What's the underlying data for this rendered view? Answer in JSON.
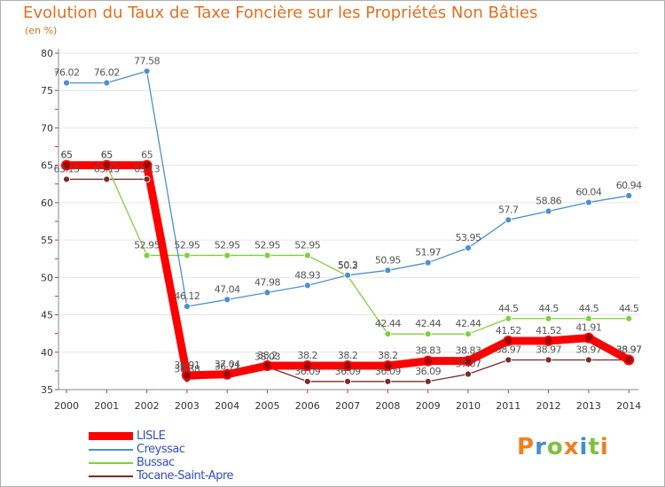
{
  "chart_data": {
    "type": "line",
    "title": "Evolution du Taux de Taxe Foncière sur les Propriétés Non Bâties",
    "ylabel": "(en %)",
    "xlabel": "",
    "ylim": [
      35,
      80
    ],
    "yticks": [
      35,
      40,
      45,
      50,
      55,
      60,
      65,
      70,
      75,
      80
    ],
    "categories": [
      "2000",
      "2001",
      "2002",
      "2003",
      "2004",
      "2005",
      "2006",
      "2007",
      "2008",
      "2009",
      "2010",
      "2011",
      "2012",
      "2013",
      "2014"
    ],
    "series": [
      {
        "name": "LISLE",
        "color": "#ff0000",
        "values": [
          65,
          65,
          65,
          36.91,
          37.04,
          38.2,
          38.2,
          38.2,
          38.2,
          38.83,
          38.83,
          41.52,
          41.52,
          41.91,
          38.97
        ],
        "labels": [
          "65",
          "65",
          "65",
          "36.91",
          "37.04",
          "38.2",
          "38.2",
          "38.2",
          "38.2",
          "38.83",
          "38.83",
          "41.52",
          "41.52",
          "41.91",
          "38.97"
        ]
      },
      {
        "name": "Creyssac",
        "color": "#4c90d0",
        "values": [
          76.02,
          76.02,
          77.58,
          46.12,
          47.04,
          47.98,
          48.93,
          50.3,
          50.95,
          51.97,
          53.95,
          57.7,
          58.86,
          60.04,
          60.94
        ],
        "labels": [
          "76.02",
          "76.02",
          "77.58",
          "46.12",
          "47.04",
          "47.98",
          "48.93",
          "50.3",
          "50.95",
          "51.97",
          "53.95",
          "57.7",
          "58.86",
          "60.04",
          "60.94"
        ]
      },
      {
        "name": "Bussac",
        "color": "#80d040",
        "values": [
          65,
          65,
          52.95,
          52.95,
          52.95,
          52.95,
          52.95,
          50.2,
          42.44,
          42.44,
          42.44,
          44.5,
          44.5,
          44.5,
          44.5
        ],
        "labels": [
          "65",
          "65",
          "52.95",
          "52.95",
          "52.95",
          "52.95",
          "52.95",
          "50.2",
          "42.44",
          "42.44",
          "42.44",
          "44.5",
          "44.5",
          "44.5",
          "44.5"
        ]
      },
      {
        "name": "Tocane-Saint-Apre",
        "color": "#7a2a2a",
        "values": [
          63.13,
          63.13,
          63.13,
          36.38,
          36.71,
          38.03,
          36.09,
          36.09,
          36.09,
          36.09,
          37.07,
          38.97,
          38.97,
          38.97,
          38.97
        ],
        "labels": [
          "63.13",
          "63.13",
          "63.13",
          "36.38",
          "36.71",
          "38.03",
          "36.09",
          "36.09",
          "36.09",
          "36.09",
          "37.07",
          "38.97",
          "38.97",
          "38.97",
          "38.97"
        ]
      }
    ]
  },
  "logo": {
    "text": "Proxiti",
    "colors": [
      "#f08020",
      "#4090d0",
      "#80c040",
      "#f08020",
      "#4090d0",
      "#80c040",
      "#f08020"
    ]
  }
}
